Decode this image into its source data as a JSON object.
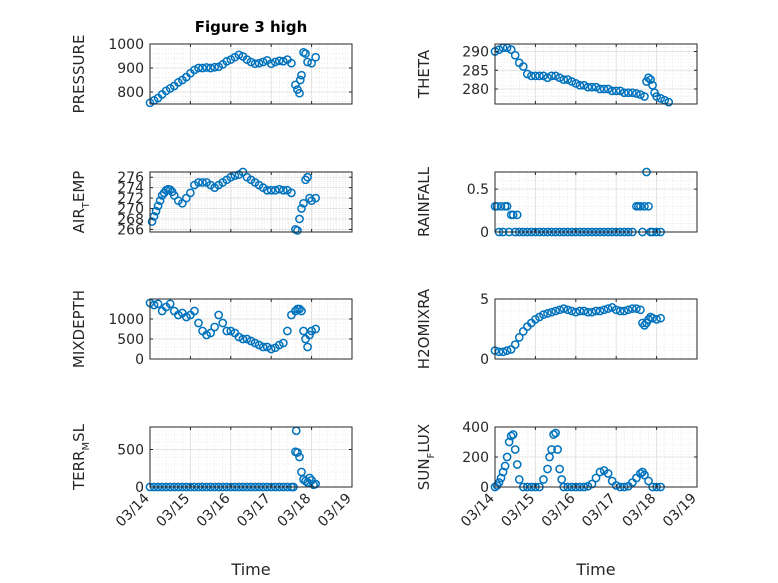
{
  "figure": {
    "title": "Figure 3 high"
  },
  "colors": {
    "marker": "#0072BD",
    "axis": "#262626",
    "grid": "#dcdcdc",
    "background": "#ffffff"
  },
  "chart_data": [
    {
      "id": "pressure",
      "type": "scatter",
      "title": "Figure 3 high",
      "ylabel": {
        "main": "PRESSURE",
        "sub": ""
      },
      "xlabel": "",
      "xlim": [
        14,
        19
      ],
      "ylim": [
        750,
        1000
      ],
      "yticks": [
        800,
        900,
        1000
      ],
      "xticks": [
        14,
        15,
        16,
        17,
        18,
        19
      ],
      "xtick_labels": [],
      "grid": true,
      "minor_grid": true,
      "series": [
        {
          "x": [
            14.0,
            14.1,
            14.2,
            14.3,
            14.4,
            14.5,
            14.6,
            14.7,
            14.8,
            14.9,
            15.0,
            15.1,
            15.2,
            15.3,
            15.4,
            15.5,
            15.6,
            15.7,
            15.8,
            15.9,
            16.0,
            16.1,
            16.2,
            16.3,
            16.4,
            16.5,
            16.6,
            16.7,
            16.8,
            16.9,
            17.0,
            17.1,
            17.2,
            17.3,
            17.4,
            17.5,
            17.6,
            17.65,
            17.7,
            17.72,
            17.75,
            17.8,
            17.85,
            17.9,
            18.0,
            18.1
          ],
          "y": [
            755,
            765,
            775,
            790,
            805,
            815,
            825,
            840,
            850,
            862,
            878,
            892,
            900,
            900,
            902,
            900,
            903,
            905,
            915,
            928,
            935,
            945,
            955,
            948,
            935,
            925,
            918,
            920,
            925,
            932,
            918,
            925,
            930,
            928,
            935,
            920,
            830,
            810,
            795,
            850,
            870,
            965,
            960,
            925,
            920,
            945
          ]
        }
      ]
    },
    {
      "id": "theta",
      "type": "scatter",
      "ylabel": {
        "main": "THETA",
        "sub": ""
      },
      "xlabel": "",
      "xlim": [
        14,
        19
      ],
      "ylim": [
        276,
        292
      ],
      "yticks": [
        280,
        285,
        290
      ],
      "xticks": [
        14,
        15,
        16,
        17,
        18,
        19
      ],
      "xtick_labels": [],
      "grid": true,
      "minor_grid": true,
      "series": [
        {
          "x": [
            14.0,
            14.1,
            14.2,
            14.3,
            14.4,
            14.5,
            14.6,
            14.7,
            14.8,
            14.9,
            15.0,
            15.1,
            15.2,
            15.3,
            15.4,
            15.5,
            15.6,
            15.7,
            15.8,
            15.9,
            16.0,
            16.1,
            16.2,
            16.3,
            16.4,
            16.5,
            16.6,
            16.7,
            16.8,
            16.9,
            17.0,
            17.1,
            17.2,
            17.3,
            17.4,
            17.5,
            17.6,
            17.7,
            17.75,
            17.8,
            17.85,
            17.9,
            17.95,
            18.0,
            18.1,
            18.2,
            18.3
          ],
          "y": [
            290,
            290.5,
            291,
            291,
            290.5,
            289,
            287,
            286,
            284,
            283.5,
            283.5,
            283.5,
            283.5,
            283,
            283.5,
            283.5,
            283,
            282.5,
            282.5,
            282,
            281.5,
            281,
            281,
            280.5,
            280.5,
            280.5,
            280,
            280,
            280,
            279.5,
            279.5,
            279.5,
            279,
            279,
            279,
            278.8,
            278.5,
            278,
            282,
            283,
            282.5,
            281,
            279,
            278,
            277.5,
            277,
            276.5
          ]
        }
      ]
    },
    {
      "id": "air_temp",
      "type": "scatter",
      "ylabel": {
        "main": "AIR",
        "sub": "T",
        "rest": "EMP"
      },
      "xlabel": "",
      "xlim": [
        14,
        19
      ],
      "ylim": [
        265.5,
        277
      ],
      "yticks": [
        266,
        268,
        270,
        272,
        274,
        276
      ],
      "ytick_labels": [
        "266",
        "268",
        "270",
        "272",
        "274",
        "276"
      ],
      "xticks": [
        14,
        15,
        16,
        17,
        18,
        19
      ],
      "xtick_labels": [],
      "grid": true,
      "minor_grid": true,
      "series": [
        {
          "x": [
            14.05,
            14.1,
            14.15,
            14.2,
            14.25,
            14.3,
            14.35,
            14.4,
            14.45,
            14.5,
            14.55,
            14.6,
            14.7,
            14.8,
            14.9,
            15.0,
            15.1,
            15.2,
            15.3,
            15.4,
            15.5,
            15.6,
            15.7,
            15.8,
            15.9,
            16.0,
            16.1,
            16.2,
            16.3,
            16.4,
            16.5,
            16.6,
            16.7,
            16.8,
            16.9,
            17.0,
            17.1,
            17.2,
            17.3,
            17.4,
            17.5,
            17.6,
            17.65,
            17.7,
            17.75,
            17.8,
            17.85,
            17.9,
            17.95,
            18.0,
            18.1
          ],
          "y": [
            267.5,
            268.5,
            269.5,
            270.5,
            271.5,
            272.5,
            273,
            273.5,
            273.7,
            273.6,
            273.2,
            272.5,
            271.5,
            271,
            272,
            273,
            274.5,
            275,
            275,
            275,
            274.5,
            274,
            274.5,
            275,
            275.5,
            276,
            276.3,
            276.5,
            277,
            276,
            275.5,
            275,
            274.5,
            274,
            273.5,
            273.5,
            273.5,
            273.7,
            273.5,
            273.5,
            273,
            266,
            265.8,
            268,
            270,
            271,
            275.5,
            276,
            272,
            271.5,
            272
          ]
        }
      ]
    },
    {
      "id": "rainfall",
      "type": "scatter",
      "ylabel": {
        "main": "RAINFALL",
        "sub": ""
      },
      "xlabel": "",
      "xlim": [
        14,
        19
      ],
      "ylim": [
        0,
        0.7
      ],
      "yticks": [
        0,
        0.5
      ],
      "xticks": [
        14,
        15,
        16,
        17,
        18,
        19
      ],
      "xtick_labels": [],
      "grid": true,
      "minor_grid": true,
      "series": [
        {
          "x": [
            14.0,
            14.05,
            14.1,
            14.15,
            14.2,
            14.25,
            14.3,
            14.35,
            14.4,
            14.45,
            14.5,
            14.55,
            14.6,
            14.7,
            14.8,
            14.9,
            15.0,
            15.1,
            15.2,
            15.3,
            15.4,
            15.5,
            15.6,
            15.7,
            15.8,
            15.9,
            16.0,
            16.1,
            16.2,
            16.3,
            16.4,
            16.5,
            16.6,
            16.7,
            16.8,
            16.9,
            17.0,
            17.1,
            17.2,
            17.3,
            17.4,
            17.5,
            17.55,
            17.6,
            17.65,
            17.7,
            17.75,
            17.8,
            17.85,
            17.9,
            18.0,
            18.1
          ],
          "y": [
            0.3,
            0.3,
            0,
            0.3,
            0,
            0.3,
            0.3,
            0,
            0.2,
            0.2,
            0,
            0.2,
            0,
            0,
            0,
            0,
            0,
            0,
            0,
            0,
            0,
            0,
            0,
            0,
            0,
            0,
            0,
            0,
            0,
            0,
            0,
            0,
            0,
            0,
            0,
            0,
            0,
            0,
            0,
            0,
            0,
            0.3,
            0.3,
            0.3,
            0,
            0.3,
            0.7,
            0.3,
            0,
            0,
            0,
            0
          ]
        }
      ]
    },
    {
      "id": "mixdepth",
      "type": "scatter",
      "ylabel": {
        "main": "MIXDEPTH",
        "sub": ""
      },
      "xlabel": "",
      "xlim": [
        14,
        19
      ],
      "ylim": [
        0,
        1500
      ],
      "yticks": [
        0,
        500,
        1000
      ],
      "xticks": [
        14,
        15,
        16,
        17,
        18,
        19
      ],
      "xtick_labels": [],
      "grid": true,
      "minor_grid": true,
      "series": [
        {
          "x": [
            14.0,
            14.1,
            14.2,
            14.3,
            14.4,
            14.5,
            14.6,
            14.7,
            14.8,
            14.9,
            15.0,
            15.1,
            15.2,
            15.3,
            15.4,
            15.5,
            15.6,
            15.7,
            15.8,
            15.9,
            16.0,
            16.1,
            16.2,
            16.3,
            16.4,
            16.5,
            16.6,
            16.7,
            16.8,
            16.9,
            17.0,
            17.1,
            17.2,
            17.3,
            17.4,
            17.5,
            17.6,
            17.65,
            17.7,
            17.75,
            17.8,
            17.85,
            17.9,
            17.95,
            18.0,
            18.1
          ],
          "y": [
            1400,
            1350,
            1380,
            1200,
            1300,
            1380,
            1200,
            1100,
            1150,
            1050,
            1100,
            1200,
            900,
            700,
            600,
            650,
            800,
            1100,
            900,
            700,
            700,
            650,
            550,
            500,
            500,
            450,
            400,
            350,
            300,
            300,
            250,
            280,
            350,
            400,
            700,
            1100,
            1200,
            1250,
            1250,
            1200,
            700,
            500,
            300,
            600,
            700,
            750
          ]
        }
      ]
    },
    {
      "id": "h2omixra",
      "type": "scatter",
      "ylabel": {
        "main": "H2OMIXRA",
        "sub": ""
      },
      "xlabel": "",
      "xlim": [
        14,
        19
      ],
      "ylim": [
        0,
        5
      ],
      "yticks": [
        0,
        5
      ],
      "xticks": [
        14,
        15,
        16,
        17,
        18,
        19
      ],
      "xtick_labels": [],
      "grid": true,
      "minor_grid": true,
      "series": [
        {
          "x": [
            14.0,
            14.1,
            14.2,
            14.3,
            14.4,
            14.5,
            14.6,
            14.7,
            14.8,
            14.9,
            15.0,
            15.1,
            15.2,
            15.3,
            15.4,
            15.5,
            15.6,
            15.7,
            15.8,
            15.9,
            16.0,
            16.1,
            16.2,
            16.3,
            16.4,
            16.5,
            16.6,
            16.7,
            16.8,
            16.9,
            17.0,
            17.1,
            17.2,
            17.3,
            17.4,
            17.5,
            17.6,
            17.65,
            17.7,
            17.75,
            17.8,
            17.85,
            17.9,
            18.0,
            18.1
          ],
          "y": [
            0.7,
            0.6,
            0.6,
            0.7,
            0.8,
            1.2,
            1.8,
            2.3,
            2.7,
            3.0,
            3.3,
            3.5,
            3.7,
            3.8,
            3.9,
            4.0,
            4.1,
            4.2,
            4.1,
            4.0,
            3.9,
            4.0,
            4.0,
            3.9,
            3.9,
            4.0,
            4.0,
            4.1,
            4.2,
            4.3,
            4.1,
            4.0,
            4.0,
            4.1,
            4.2,
            4.2,
            4.1,
            3.0,
            2.8,
            3.0,
            3.3,
            3.5,
            3.4,
            3.3,
            3.4
          ]
        }
      ]
    },
    {
      "id": "terr_msl",
      "type": "scatter",
      "ylabel": {
        "main": "TERR",
        "sub": "M",
        "rest": "SL"
      },
      "xlabel": "Time",
      "xlim": [
        14,
        19
      ],
      "ylim": [
        0,
        800
      ],
      "yticks": [
        0,
        500
      ],
      "xticks": [
        14,
        15,
        16,
        17,
        18,
        19
      ],
      "xtick_labels": [
        "03/14",
        "03/15",
        "03/16",
        "03/17",
        "03/18",
        "03/19"
      ],
      "grid": true,
      "minor_grid": true,
      "series": [
        {
          "x": [
            14.0,
            14.1,
            14.2,
            14.3,
            14.4,
            14.5,
            14.6,
            14.7,
            14.8,
            14.9,
            15.0,
            15.1,
            15.2,
            15.3,
            15.4,
            15.5,
            15.6,
            15.7,
            15.8,
            15.9,
            16.0,
            16.1,
            16.2,
            16.3,
            16.4,
            16.5,
            16.6,
            16.7,
            16.8,
            16.9,
            17.0,
            17.1,
            17.2,
            17.3,
            17.4,
            17.5,
            17.55,
            17.6,
            17.62,
            17.65,
            17.7,
            17.75,
            17.8,
            17.85,
            17.9,
            17.95,
            18.0,
            18.05,
            18.1
          ],
          "y": [
            0,
            0,
            0,
            0,
            0,
            0,
            0,
            0,
            0,
            0,
            0,
            0,
            0,
            0,
            0,
            0,
            0,
            0,
            0,
            0,
            0,
            0,
            0,
            0,
            0,
            0,
            0,
            0,
            0,
            0,
            0,
            0,
            0,
            0,
            0,
            0,
            0,
            470,
            750,
            460,
            400,
            200,
            100,
            80,
            60,
            120,
            90,
            30,
            40
          ]
        }
      ]
    },
    {
      "id": "sun_flux",
      "type": "scatter",
      "ylabel": {
        "main": "SUN",
        "sub": "F",
        "rest": "LUX"
      },
      "xlabel": "Time",
      "xlim": [
        14,
        19
      ],
      "ylim": [
        0,
        400
      ],
      "yticks": [
        0,
        200,
        400
      ],
      "xticks": [
        14,
        15,
        16,
        17,
        18,
        19
      ],
      "xtick_labels": [
        "03/14",
        "03/15",
        "03/16",
        "03/17",
        "03/18",
        "03/19"
      ],
      "grid": true,
      "minor_grid": true,
      "series": [
        {
          "x": [
            14.0,
            14.05,
            14.1,
            14.15,
            14.2,
            14.25,
            14.3,
            14.35,
            14.4,
            14.45,
            14.5,
            14.55,
            14.6,
            14.7,
            14.8,
            14.9,
            15.0,
            15.1,
            15.2,
            15.3,
            15.35,
            15.4,
            15.45,
            15.5,
            15.55,
            15.6,
            15.65,
            15.7,
            15.8,
            15.9,
            16.0,
            16.1,
            16.2,
            16.3,
            16.4,
            16.5,
            16.6,
            16.7,
            16.8,
            16.9,
            17.0,
            17.1,
            17.2,
            17.3,
            17.4,
            17.5,
            17.6,
            17.65,
            17.7,
            17.8,
            17.9,
            18.0,
            18.1
          ],
          "y": [
            0,
            10,
            30,
            60,
            100,
            140,
            200,
            300,
            340,
            350,
            250,
            150,
            50,
            0,
            0,
            0,
            0,
            0,
            50,
            120,
            200,
            250,
            350,
            360,
            250,
            120,
            50,
            0,
            0,
            0,
            0,
            0,
            0,
            5,
            20,
            60,
            100,
            110,
            90,
            40,
            10,
            0,
            0,
            5,
            30,
            60,
            90,
            100,
            80,
            40,
            0,
            0,
            0
          ]
        }
      ]
    }
  ]
}
